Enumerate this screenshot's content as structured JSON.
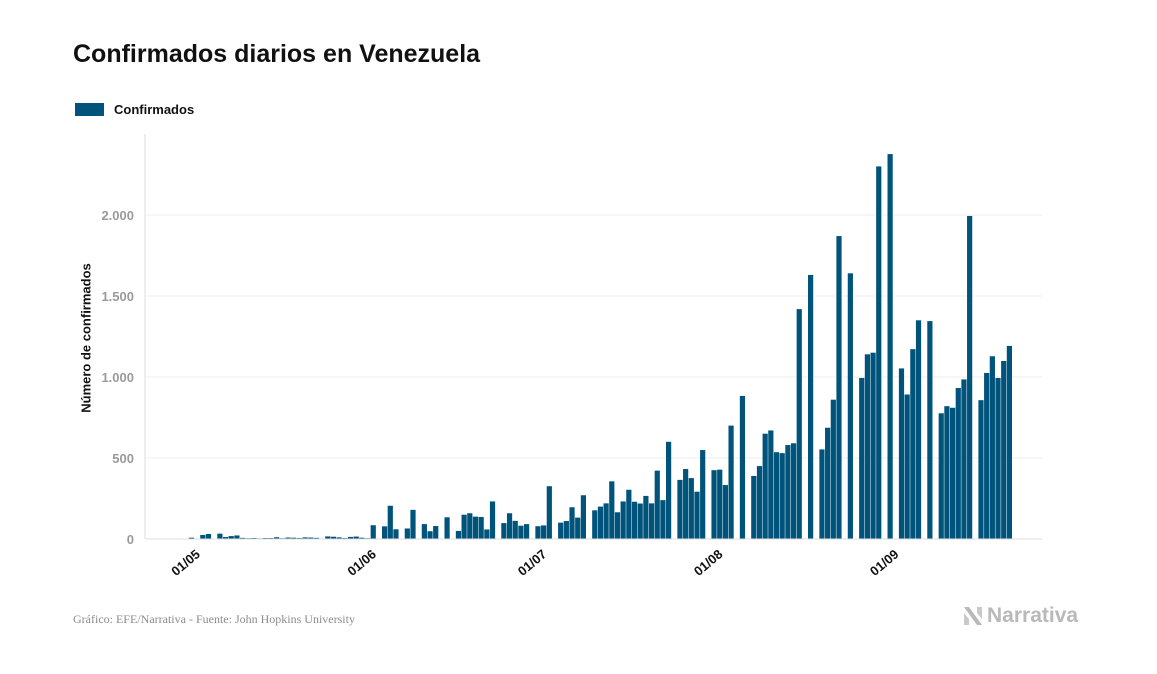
{
  "title": "Confirmados diarios en Venezuela",
  "legend": {
    "label": "Confirmados",
    "color": "#00547b"
  },
  "footer": {
    "source": "Gráfico: EFE/Narrativa - Fuente: John Hopkins University"
  },
  "brand": {
    "name": "Narrativa",
    "icon": "narrativa-logo-icon"
  },
  "chart_data": {
    "type": "bar",
    "title": "Confirmados diarios en Venezuela",
    "ylabel": "Número de confirmados",
    "xlabel": "",
    "ylim": [
      0,
      2500
    ],
    "yticks": [
      0,
      500,
      1000,
      1500,
      2000
    ],
    "ytick_labels": [
      "0",
      "500",
      "1.000",
      "1.500",
      "2.000"
    ],
    "xtick_labels": [
      {
        "day": 1,
        "label": "01/05"
      },
      {
        "day": 32,
        "label": "01/06"
      },
      {
        "day": 62,
        "label": "01/07"
      },
      {
        "day": 93,
        "label": "01/08"
      },
      {
        "day": 124,
        "label": "01/09"
      }
    ],
    "x_start": "2020-04-24",
    "grid": true,
    "legend_position": "top-left",
    "series": [
      {
        "name": "Confirmados",
        "color": "#00547b",
        "values": [
          0,
          8,
          0,
          25,
          31,
          0,
          33,
          12,
          18,
          22,
          7,
          5,
          6,
          4,
          6,
          6,
          11,
          5,
          9,
          8,
          6,
          10,
          9,
          7,
          0,
          16,
          14,
          10,
          6,
          13,
          15,
          8,
          5,
          85,
          0,
          78,
          205,
          60,
          0,
          65,
          180,
          0,
          92,
          48,
          80,
          0,
          134,
          0,
          50,
          150,
          159,
          138,
          136,
          59,
          232,
          0,
          98,
          159,
          112,
          82,
          92,
          0,
          79,
          84,
          326,
          0,
          101,
          111,
          196,
          132,
          270,
          0,
          177,
          200,
          220,
          356,
          165,
          232,
          304,
          230,
          219,
          266,
          220,
          422,
          240,
          600,
          0,
          365,
          432,
          376,
          292,
          549,
          0,
          425,
          428,
          333,
          700,
          0,
          883,
          0,
          389,
          450,
          650,
          670,
          536,
          530,
          580,
          591,
          1419,
          0,
          1630,
          0,
          553,
          687,
          860,
          1870,
          0,
          1640,
          0,
          994,
          1140,
          1150,
          2300,
          0,
          2376,
          0,
          1053,
          892,
          1172,
          1350,
          0,
          1345,
          0,
          776,
          820,
          810,
          932,
          985,
          1994,
          0,
          857,
          1025,
          1128,
          994,
          1099,
          1192
        ]
      }
    ]
  }
}
